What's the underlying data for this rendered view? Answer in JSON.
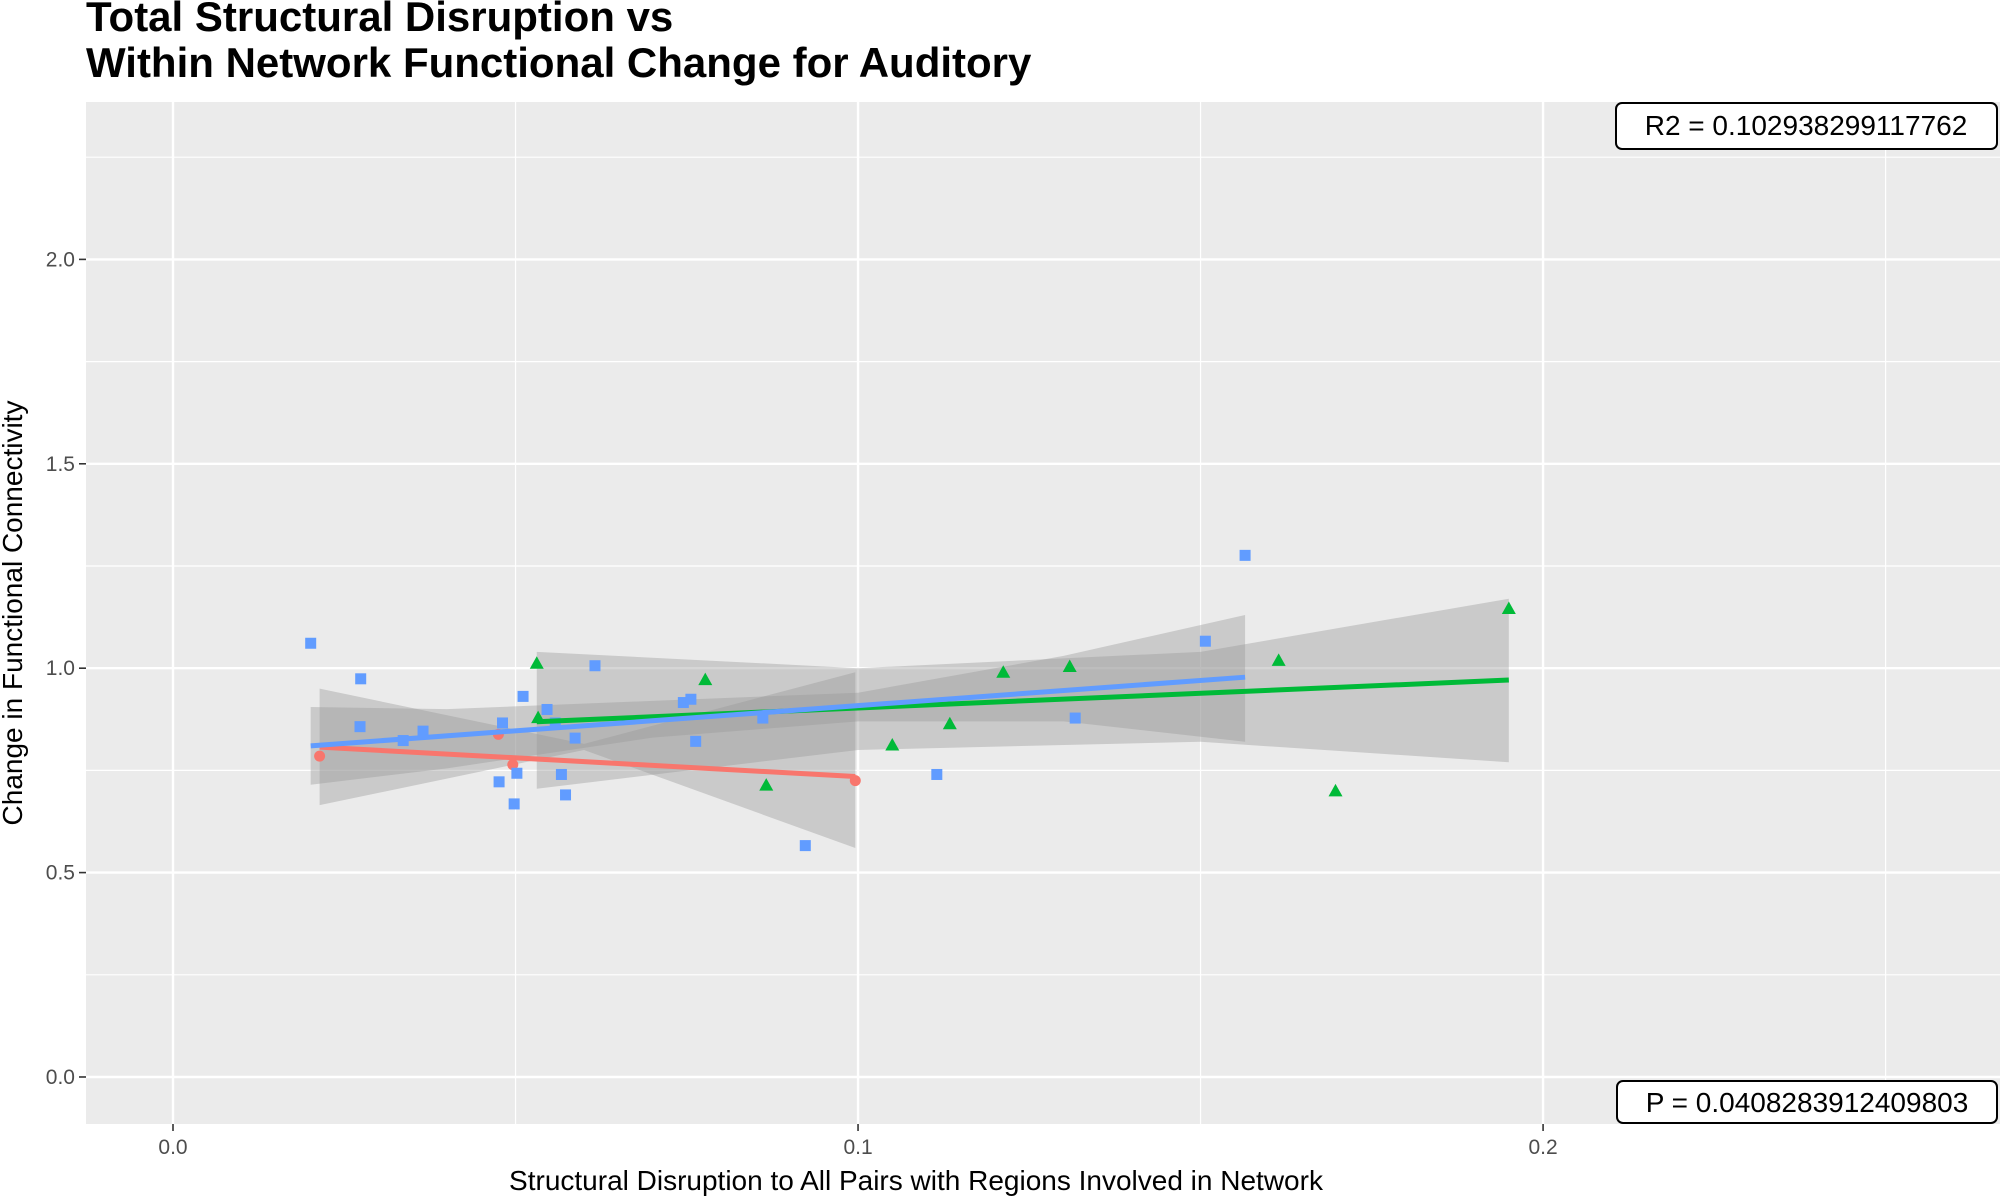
{
  "chart_data": {
    "type": "scatter",
    "title_lines": [
      "Total Structural Disruption vs",
      "Within Network Functional Change for Auditory"
    ],
    "xlabel": "Structural Disruption to All Pairs with Regions Involved in Network",
    "ylabel": "Change in Functional Connectivity",
    "xlim": [
      -0.0127,
      0.2667
    ],
    "ylim": [
      -0.115,
      2.385
    ],
    "x_ticks": [
      0.0,
      0.1,
      0.2
    ],
    "x_tick_labels": [
      "0.0",
      "0.1",
      "0.2"
    ],
    "y_ticks": [
      0.0,
      0.5,
      1.0,
      1.5,
      2.0
    ],
    "y_tick_labels": [
      "0.0",
      "0.5",
      "1.0",
      "1.5",
      "2.0"
    ],
    "grid": true,
    "series": [
      {
        "color": "#F8766D",
        "marker": "circle",
        "points": [
          [
            0.0214,
            0.785
          ],
          [
            0.0475,
            0.838
          ],
          [
            0.0496,
            0.764
          ],
          [
            0.0996,
            0.725
          ]
        ],
        "fit": {
          "x": [
            0.0214,
            0.0996
          ],
          "y": [
            0.807,
            0.735
          ]
        },
        "band": {
          "x": [
            0.0214,
            0.06,
            0.0996
          ],
          "upper": [
            0.95,
            0.815,
            0.99
          ],
          "lower": [
            0.665,
            0.8,
            0.56
          ]
        }
      },
      {
        "color": "#00BA38",
        "marker": "triangle",
        "points": [
          [
            0.0531,
            1.012
          ],
          [
            0.0533,
            0.879
          ],
          [
            0.0777,
            0.972
          ],
          [
            0.0866,
            0.714
          ],
          [
            0.105,
            0.812
          ],
          [
            0.1134,
            0.864
          ],
          [
            0.1212,
            0.99
          ],
          [
            0.1309,
            1.004
          ],
          [
            0.1614,
            1.019
          ],
          [
            0.1697,
            0.7
          ],
          [
            0.195,
            1.146
          ]
        ],
        "fit": {
          "x": [
            0.0531,
            0.195
          ],
          "y": [
            0.869,
            0.971
          ]
        },
        "band": {
          "x": [
            0.0531,
            0.1,
            0.15,
            0.195
          ],
          "upper": [
            1.04,
            1.0,
            1.04,
            1.17
          ],
          "lower": [
            0.705,
            0.8,
            0.82,
            0.77
          ]
        }
      },
      {
        "color": "#619CFF",
        "marker": "square",
        "points": [
          [
            0.0201,
            1.061
          ],
          [
            0.0274,
            0.974
          ],
          [
            0.0273,
            0.857
          ],
          [
            0.0336,
            0.823
          ],
          [
            0.0365,
            0.846
          ],
          [
            0.0476,
            0.722
          ],
          [
            0.0481,
            0.866
          ],
          [
            0.0498,
            0.668
          ],
          [
            0.0502,
            0.743
          ],
          [
            0.0511,
            0.931
          ],
          [
            0.0546,
            0.899
          ],
          [
            0.0558,
            0.866
          ],
          [
            0.0567,
            0.74
          ],
          [
            0.0573,
            0.69
          ],
          [
            0.0587,
            0.829
          ],
          [
            0.0616,
            1.006
          ],
          [
            0.0745,
            0.916
          ],
          [
            0.0756,
            0.924
          ],
          [
            0.0763,
            0.821
          ],
          [
            0.0861,
            0.878
          ],
          [
            0.0923,
            0.566
          ],
          [
            0.1115,
            0.74
          ],
          [
            0.1317,
            0.878
          ],
          [
            0.1507,
            1.066
          ],
          [
            0.1565,
            1.276
          ]
        ],
        "fit": {
          "x": [
            0.0201,
            0.1565
          ],
          "y": [
            0.81,
            0.978
          ]
        },
        "band": {
          "x": [
            0.0201,
            0.04,
            0.07,
            0.1,
            0.13,
            0.1565
          ],
          "upper": [
            0.905,
            0.9,
            0.92,
            0.94,
            1.03,
            1.13
          ],
          "lower": [
            0.715,
            0.755,
            0.83,
            0.87,
            0.87,
            0.82
          ]
        }
      }
    ],
    "annotations": {
      "r2_text": "R2 =  0.102938299117762",
      "p_text": "P =  0.0408283912409803"
    }
  }
}
